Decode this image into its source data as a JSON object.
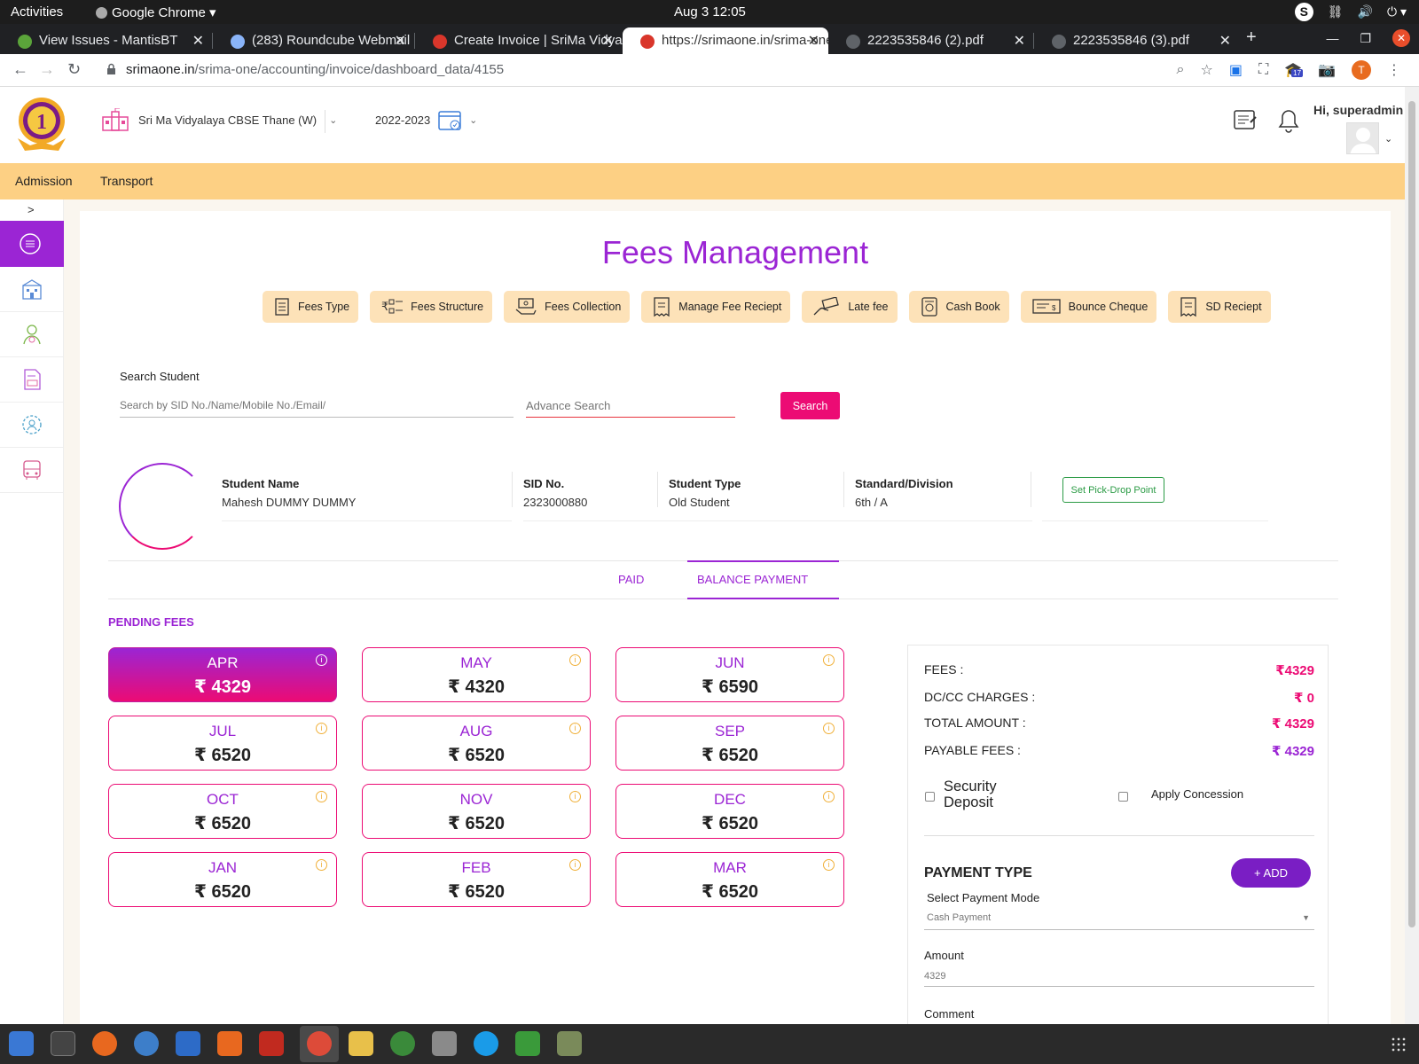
{
  "os": {
    "activities": "Activities",
    "app_name": "Google Chrome",
    "clock": "Aug 3  12:05"
  },
  "browser": {
    "tabs": [
      {
        "title": "View Issues - MantisBT",
        "favicon_color": "#5ba43a"
      },
      {
        "title": "(283) Roundcube Webmail",
        "favicon_color": "#8ab4f8"
      },
      {
        "title": "Create Invoice | SriMa Vidyalaya",
        "favicon_color": "#d9362b"
      },
      {
        "title": "https://srimaone.in/srima-one",
        "favicon_color": "#d9362b"
      },
      {
        "title": "2223535846 (2).pdf",
        "favicon_color": "#5f6368"
      },
      {
        "title": "2223535846 (3).pdf",
        "favicon_color": "#5f6368"
      }
    ],
    "url_host": "srimaone.in",
    "url_path": "/srima-one/accounting/invoice/dashboard_data/4155",
    "profile_initial": "T",
    "ext_badge": "17"
  },
  "header": {
    "school_name": "Sri Ma Vidyalaya CBSE Thane (W)",
    "academic_year": "2022-2023",
    "greeting": "Hi, superadmin",
    "accent_color": "#9b25d4",
    "pink_color": "#ec0b74"
  },
  "menu": {
    "items": [
      "Admission",
      "Transport"
    ]
  },
  "sidebar": {
    "expand_glyph": ">",
    "icons": [
      "menu-icon",
      "school-building-icon",
      "user-settings-icon",
      "invoice-icon",
      "settings-gear-icon",
      "bus-icon"
    ]
  },
  "page": {
    "title": "Fees Management",
    "top_buttons": [
      "Fees Type",
      "Fees Structure",
      "Fees Collection",
      "Manage Fee Reciept",
      "Late fee",
      "Cash Book",
      "Bounce Cheque",
      "SD Reciept"
    ],
    "search_label": "Search Student",
    "search_placeholder": "Search by SID No./Name/Mobile No./Email/",
    "advance_search_placeholder": "Advance Search",
    "search_button": "Search"
  },
  "student": {
    "name_label": "Student Name",
    "name": "Mahesh DUMMY DUMMY",
    "sid_label": "SID No.",
    "sid": "2323000880",
    "type_label": "Student Type",
    "type": "Old Student",
    "std_label": "Standard/Division",
    "std": "6th / A",
    "pick_drop_button": "Set Pick-Drop Point"
  },
  "tabs": {
    "paid": "PAID",
    "balance": "BALANCE PAYMENT",
    "active": "balance"
  },
  "pending": {
    "title": "PENDING FEES",
    "months": [
      {
        "month": "APR",
        "amount": "₹ 4329",
        "selected": true
      },
      {
        "month": "MAY",
        "amount": "₹ 4320",
        "selected": false
      },
      {
        "month": "JUN",
        "amount": "₹ 6590",
        "selected": false
      },
      {
        "month": "JUL",
        "amount": "₹ 6520",
        "selected": false
      },
      {
        "month": "AUG",
        "amount": "₹ 6520",
        "selected": false
      },
      {
        "month": "SEP",
        "amount": "₹ 6520",
        "selected": false
      },
      {
        "month": "OCT",
        "amount": "₹ 6520",
        "selected": false
      },
      {
        "month": "NOV",
        "amount": "₹ 6520",
        "selected": false
      },
      {
        "month": "DEC",
        "amount": "₹ 6520",
        "selected": false
      },
      {
        "month": "JAN",
        "amount": "₹ 6520",
        "selected": false
      },
      {
        "month": "FEB",
        "amount": "₹ 6520",
        "selected": false
      },
      {
        "month": "MAR",
        "amount": "₹ 6520",
        "selected": false
      }
    ]
  },
  "summary": {
    "fees_label": "FEES :",
    "fees_value": "₹4329",
    "charges_label": "DC/CC CHARGES :",
    "charges_value": "₹ 0",
    "total_label": "TOTAL AMOUNT :",
    "total_value": "₹ 4329",
    "payable_label": "PAYABLE FEES :",
    "payable_value": "₹ 4329",
    "security_deposit": "Security Deposit",
    "apply_concession": "Apply Concession",
    "payment_type": "PAYMENT TYPE",
    "add_button": "+ ADD",
    "select_mode_label": "Select Payment Mode",
    "select_mode_value": "Cash Payment",
    "amount_label": "Amount",
    "amount_value": "4329",
    "comment_label": "Comment"
  }
}
